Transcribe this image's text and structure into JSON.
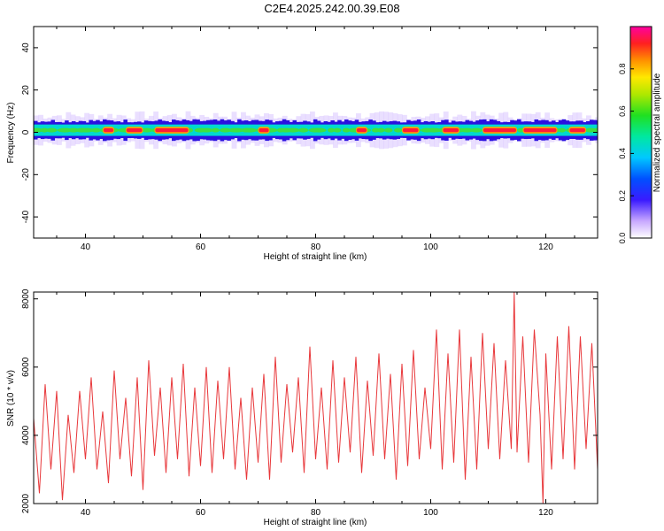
{
  "title": "C2E4.2025.242.00.39.E08",
  "chart_data": [
    {
      "type": "heatmap",
      "title": "C2E4.2025.242.00.39.E08",
      "xlabel": "Height of straight line (km)",
      "ylabel": "Frequency (Hz)",
      "xlim": [
        31,
        129
      ],
      "ylim": [
        -50,
        50
      ],
      "xticks": [
        40,
        60,
        80,
        100,
        120
      ],
      "yticks": [
        -40,
        -20,
        0,
        20,
        40
      ],
      "band_center_hz": 1,
      "band_halfwidth_hz": 3,
      "hot_spans_km": [
        [
          43,
          45
        ],
        [
          47,
          50
        ],
        [
          52,
          58
        ],
        [
          70,
          72
        ],
        [
          87,
          89
        ],
        [
          95,
          98
        ],
        [
          102,
          105
        ],
        [
          109,
          115
        ],
        [
          116,
          122
        ],
        [
          124,
          127
        ]
      ],
      "colorbar": {
        "label": "Normalized spectral amplitude",
        "range": [
          0.0,
          1.0
        ],
        "ticks": [
          "0.0",
          "0.2",
          "0.4",
          "0.6",
          "0.8"
        ]
      }
    },
    {
      "type": "line",
      "title": "",
      "xlabel": "Height of straight line (km)",
      "ylabel": "SNR (10 * v/v)",
      "xlim": [
        31,
        129
      ],
      "ylim": [
        2000,
        8200
      ],
      "xticks": [
        40,
        60,
        80,
        100,
        120
      ],
      "yticks": [
        2000,
        4000,
        6000,
        8000
      ],
      "series": [
        {
          "name": "SNR",
          "color": "#e8383b",
          "x": [
            31,
            32,
            33,
            34,
            35,
            36,
            37,
            38,
            39,
            40,
            41,
            42,
            43,
            44,
            45,
            46,
            47,
            48,
            49,
            50,
            51,
            52,
            53,
            54,
            55,
            56,
            57,
            58,
            59,
            60,
            61,
            62,
            63,
            64,
            65,
            66,
            67,
            68,
            69,
            70,
            71,
            72,
            73,
            74,
            75,
            76,
            77,
            78,
            79,
            80,
            81,
            82,
            83,
            84,
            85,
            86,
            87,
            88,
            89,
            90,
            91,
            92,
            93,
            94,
            95,
            96,
            97,
            98,
            99,
            100,
            101,
            102,
            103,
            104,
            105,
            106,
            107,
            108,
            109,
            110,
            111,
            112,
            113,
            114,
            114.5,
            115,
            116,
            117,
            118,
            119,
            119.5,
            120,
            121,
            122,
            123,
            124,
            125,
            126,
            127,
            128,
            129
          ],
          "values": [
            4500,
            2300,
            5500,
            3000,
            5300,
            2100,
            4600,
            2900,
            5300,
            3300,
            5700,
            3000,
            4700,
            2600,
            5900,
            3300,
            5100,
            2800,
            5700,
            2400,
            6200,
            3400,
            5400,
            2900,
            5700,
            3300,
            6100,
            2800,
            5400,
            3100,
            6000,
            2900,
            5600,
            3300,
            6000,
            3000,
            5100,
            2700,
            5400,
            3200,
            5800,
            2700,
            6300,
            3200,
            5500,
            3500,
            5700,
            2900,
            6600,
            3300,
            5400,
            3000,
            6200,
            3200,
            5700,
            3500,
            6300,
            2900,
            5600,
            3400,
            6400,
            3300,
            5800,
            2700,
            6100,
            3100,
            6500,
            3300,
            5400,
            3600,
            7100,
            3000,
            6400,
            3200,
            7100,
            2700,
            6300,
            3000,
            7000,
            3600,
            6700,
            3300,
            6200,
            3600,
            8200,
            3500,
            6900,
            3200,
            7100,
            4600,
            2000,
            6400,
            3000,
            6900,
            3300,
            7200,
            3000,
            6900,
            3600,
            6700,
            3000
          ]
        }
      ]
    }
  ]
}
